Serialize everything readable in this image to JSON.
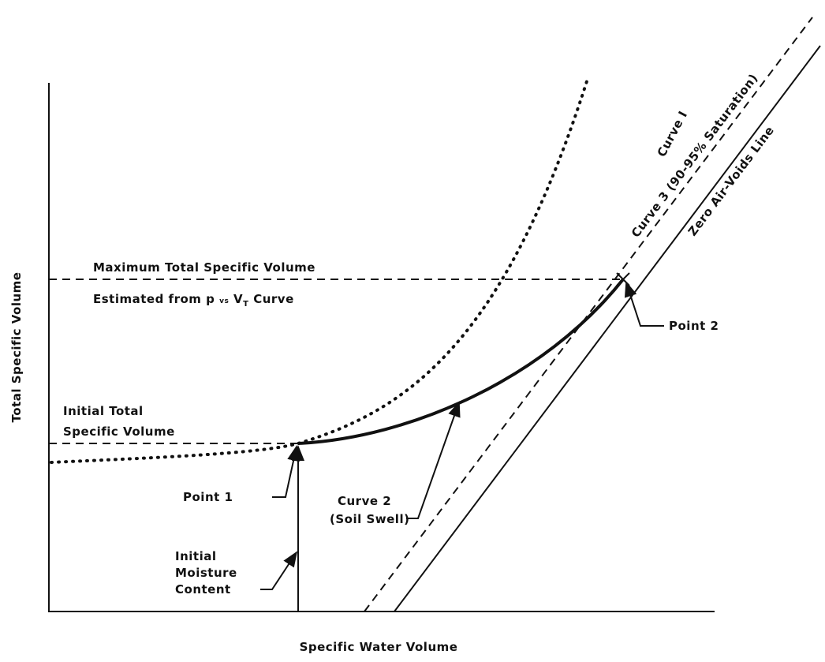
{
  "diagram": {
    "y_axis_label": "Total Specific Volume",
    "x_axis_label": "Specific Water Volume",
    "curve_1": "Curve I",
    "curve_3": "Curve 3 (90-95% Saturation)",
    "zero_air_voids": "Zero Air-Voids Line",
    "max_line_1": "Maximum Total Specific Volume",
    "max_line_2": {
      "before": "Estimated from p ",
      "vs": "vs",
      "v": " V",
      "sub": "T",
      "after": " Curve"
    },
    "point_2": "Point 2",
    "initial_total": [
      "Initial Total",
      "Specific Volume"
    ],
    "point_1": "Point 1",
    "curve_2": [
      "Curve 2",
      "(Soil Swell)"
    ],
    "initial_moisture": [
      "Initial",
      "Moisture",
      "Content"
    ]
  }
}
